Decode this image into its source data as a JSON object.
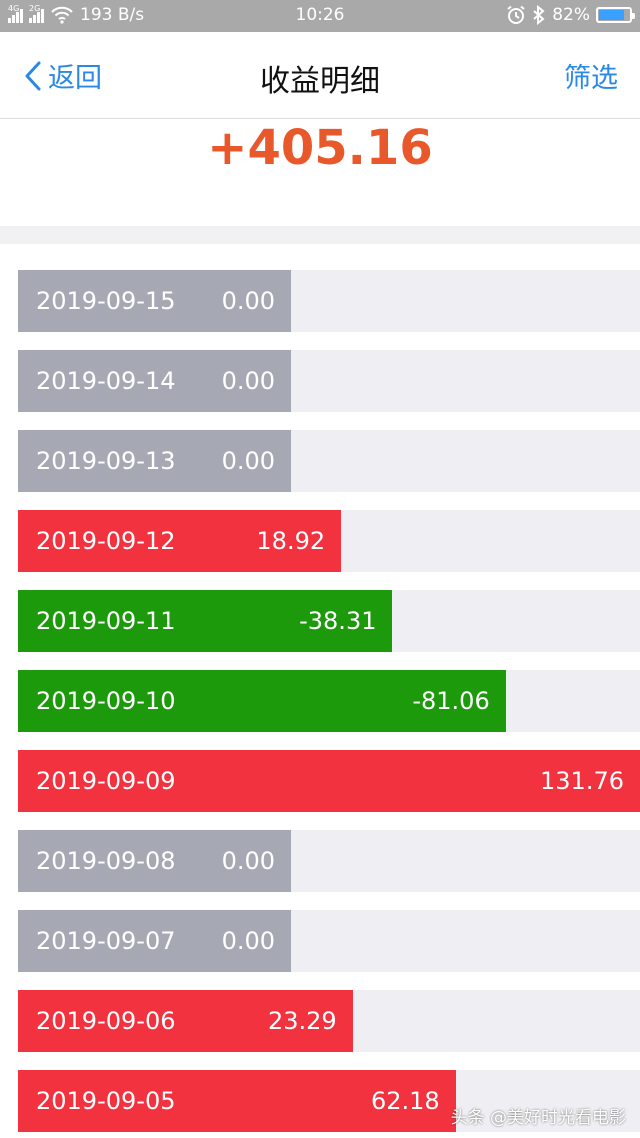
{
  "status_bar": {
    "net_speed": "193 B/s",
    "time": "10:26",
    "battery": "82%",
    "battery_level": 0.82,
    "net_tags": [
      "4G",
      "2G"
    ]
  },
  "nav": {
    "back_label": "返回",
    "title": "收益明细",
    "filter_label": "筛选"
  },
  "summary": {
    "total": "+405.16"
  },
  "colors": {
    "gain": "#f2333f",
    "loss": "#1c9a0b",
    "zero": "#a6a9b4",
    "accent": "#2a88e6",
    "total": "#e8582a"
  },
  "records": [
    {
      "date": "2019-09-15",
      "amount": "0.00"
    },
    {
      "date": "2019-09-14",
      "amount": "0.00"
    },
    {
      "date": "2019-09-13",
      "amount": "0.00"
    },
    {
      "date": "2019-09-12",
      "amount": "18.92"
    },
    {
      "date": "2019-09-11",
      "amount": "-38.31"
    },
    {
      "date": "2019-09-10",
      "amount": "-81.06"
    },
    {
      "date": "2019-09-09",
      "amount": "131.76"
    },
    {
      "date": "2019-09-08",
      "amount": "0.00"
    },
    {
      "date": "2019-09-07",
      "amount": "0.00"
    },
    {
      "date": "2019-09-06",
      "amount": "23.29"
    },
    {
      "date": "2019-09-05",
      "amount": "62.18"
    }
  ],
  "watermark": "头条 @美好时光看电影"
}
